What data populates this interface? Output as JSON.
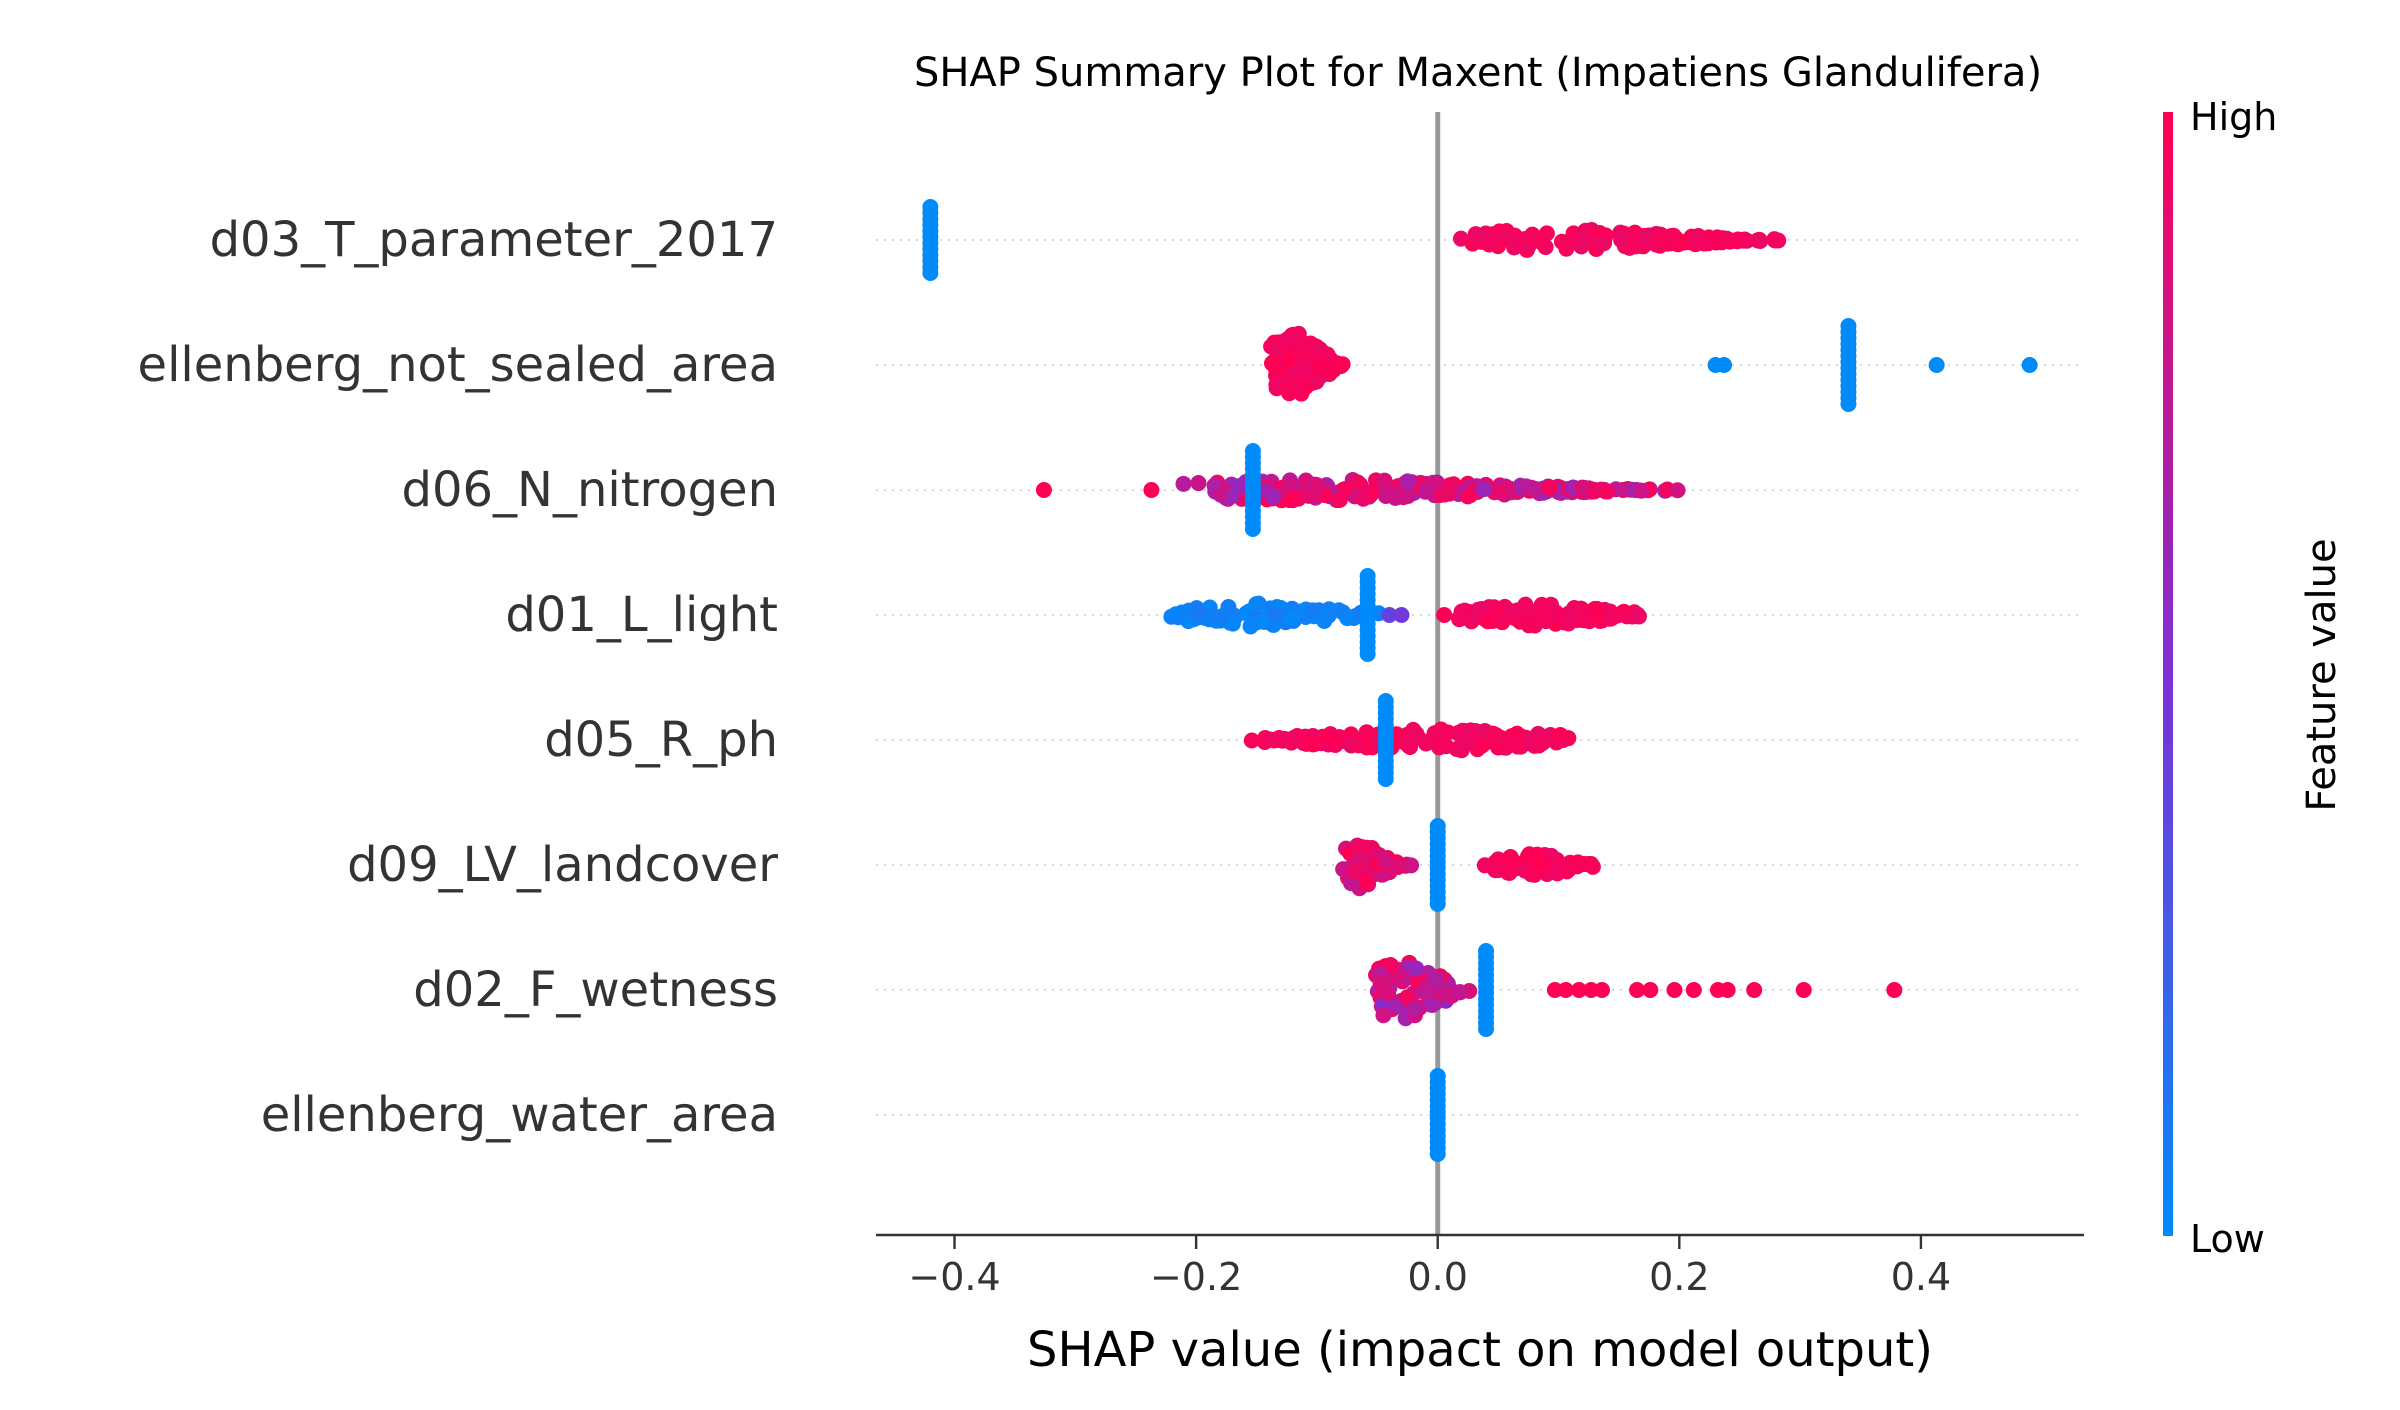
{
  "chart_data": {
    "type": "scatter",
    "title": "SHAP Summary Plot for Maxent (Impatiens Glandulifera)",
    "xlabel": "SHAP value (impact on model output)",
    "ylabel": "",
    "xlim": [
      -0.465,
      0.535
    ],
    "xticks": [
      -0.4,
      -0.2,
      0.0,
      0.2,
      0.4
    ],
    "xtick_labels": [
      "−0.4",
      "−0.2",
      "0.0",
      "0.2",
      "0.4"
    ],
    "grid": false,
    "colorbar": {
      "label": "Feature value",
      "high_label": "High",
      "low_label": "Low",
      "high_color": "#ff0052",
      "low_color": "#008bfb"
    },
    "features": [
      {
        "name": "d03_T_parameter_2017",
        "groups": [
          {
            "value": "low",
            "x": [
              -0.42
            ],
            "stack": 12
          },
          {
            "value": "high",
            "from": 0.015,
            "to": 0.295,
            "n": 150,
            "peak": 0.1,
            "width": 2
          }
        ],
        "points": []
      },
      {
        "name": "ellenberg_not_sealed_area",
        "groups": [
          {
            "value": "high",
            "from": -0.14,
            "to": -0.075,
            "n": 110,
            "peak": -0.12,
            "width": 6
          },
          {
            "value": "low",
            "x": [
              0.34
            ],
            "stack": 14
          }
        ],
        "points": [
          {
            "x": 0.23,
            "v": 0.0
          },
          {
            "x": 0.237,
            "v": 0.0
          },
          {
            "x": 0.413,
            "v": 0.0
          },
          {
            "x": 0.49,
            "v": 0.0
          }
        ]
      },
      {
        "name": "d06_N_nitrogen",
        "groups": [
          {
            "value": "mixed-high",
            "from": -0.22,
            "to": 0.22,
            "n": 220,
            "peak": -0.1,
            "width": 2
          },
          {
            "value": "low",
            "x": [
              -0.153
            ],
            "stack": 14
          }
        ],
        "points": [
          {
            "x": -0.326,
            "v": 1.0
          },
          {
            "x": -0.237,
            "v": 1.0
          }
        ]
      },
      {
        "name": "d01_L_light",
        "groups": [
          {
            "value": "low",
            "from": -0.23,
            "to": -0.04,
            "n": 90,
            "peak": -0.15,
            "width": 2
          },
          {
            "value": "high",
            "from": 0.0,
            "to": 0.175,
            "n": 130,
            "peak": 0.08,
            "width": 2
          },
          {
            "value": "low",
            "x": [
              -0.058
            ],
            "stack": 14
          }
        ],
        "points": [
          {
            "x": -0.04,
            "v": 0.4
          },
          {
            "x": -0.03,
            "v": 0.45
          }
        ]
      },
      {
        "name": "d05_R_ph",
        "groups": [
          {
            "value": "high",
            "from": -0.165,
            "to": 0.12,
            "n": 160,
            "peak": 0.0,
            "width": 2
          },
          {
            "value": "low",
            "x": [
              -0.043
            ],
            "stack": 14
          }
        ],
        "points": []
      },
      {
        "name": "d09_LV_landcover",
        "groups": [
          {
            "value": "high-mixed",
            "from": -0.08,
            "to": -0.02,
            "n": 70,
            "peak": -0.065,
            "width": 4
          },
          {
            "value": "high",
            "from": 0.035,
            "to": 0.135,
            "n": 60,
            "peak": 0.08,
            "width": 2
          },
          {
            "value": "low",
            "x": [
              0.0
            ],
            "stack": 14
          }
        ],
        "points": []
      },
      {
        "name": "d02_F_wetness",
        "groups": [
          {
            "value": "mixed",
            "from": -0.055,
            "to": 0.03,
            "n": 90,
            "peak": -0.03,
            "width": 6
          },
          {
            "value": "low",
            "x": [
              0.04
            ],
            "stack": 14
          }
        ],
        "points": [
          {
            "x": 0.097,
            "v": 1.0
          },
          {
            "x": 0.106,
            "v": 1.0
          },
          {
            "x": 0.117,
            "v": 1.0
          },
          {
            "x": 0.127,
            "v": 1.0
          },
          {
            "x": 0.136,
            "v": 1.0
          },
          {
            "x": 0.165,
            "v": 1.0
          },
          {
            "x": 0.176,
            "v": 1.0
          },
          {
            "x": 0.196,
            "v": 1.0
          },
          {
            "x": 0.212,
            "v": 1.0
          },
          {
            "x": 0.232,
            "v": 1.0
          },
          {
            "x": 0.24,
            "v": 1.0
          },
          {
            "x": 0.262,
            "v": 1.0
          },
          {
            "x": 0.303,
            "v": 1.0
          },
          {
            "x": 0.378,
            "v": 1.0
          }
        ]
      },
      {
        "name": "ellenberg_water_area",
        "groups": [
          {
            "value": "low",
            "x": [
              0.0
            ],
            "stack": 14
          }
        ],
        "points": []
      }
    ]
  }
}
